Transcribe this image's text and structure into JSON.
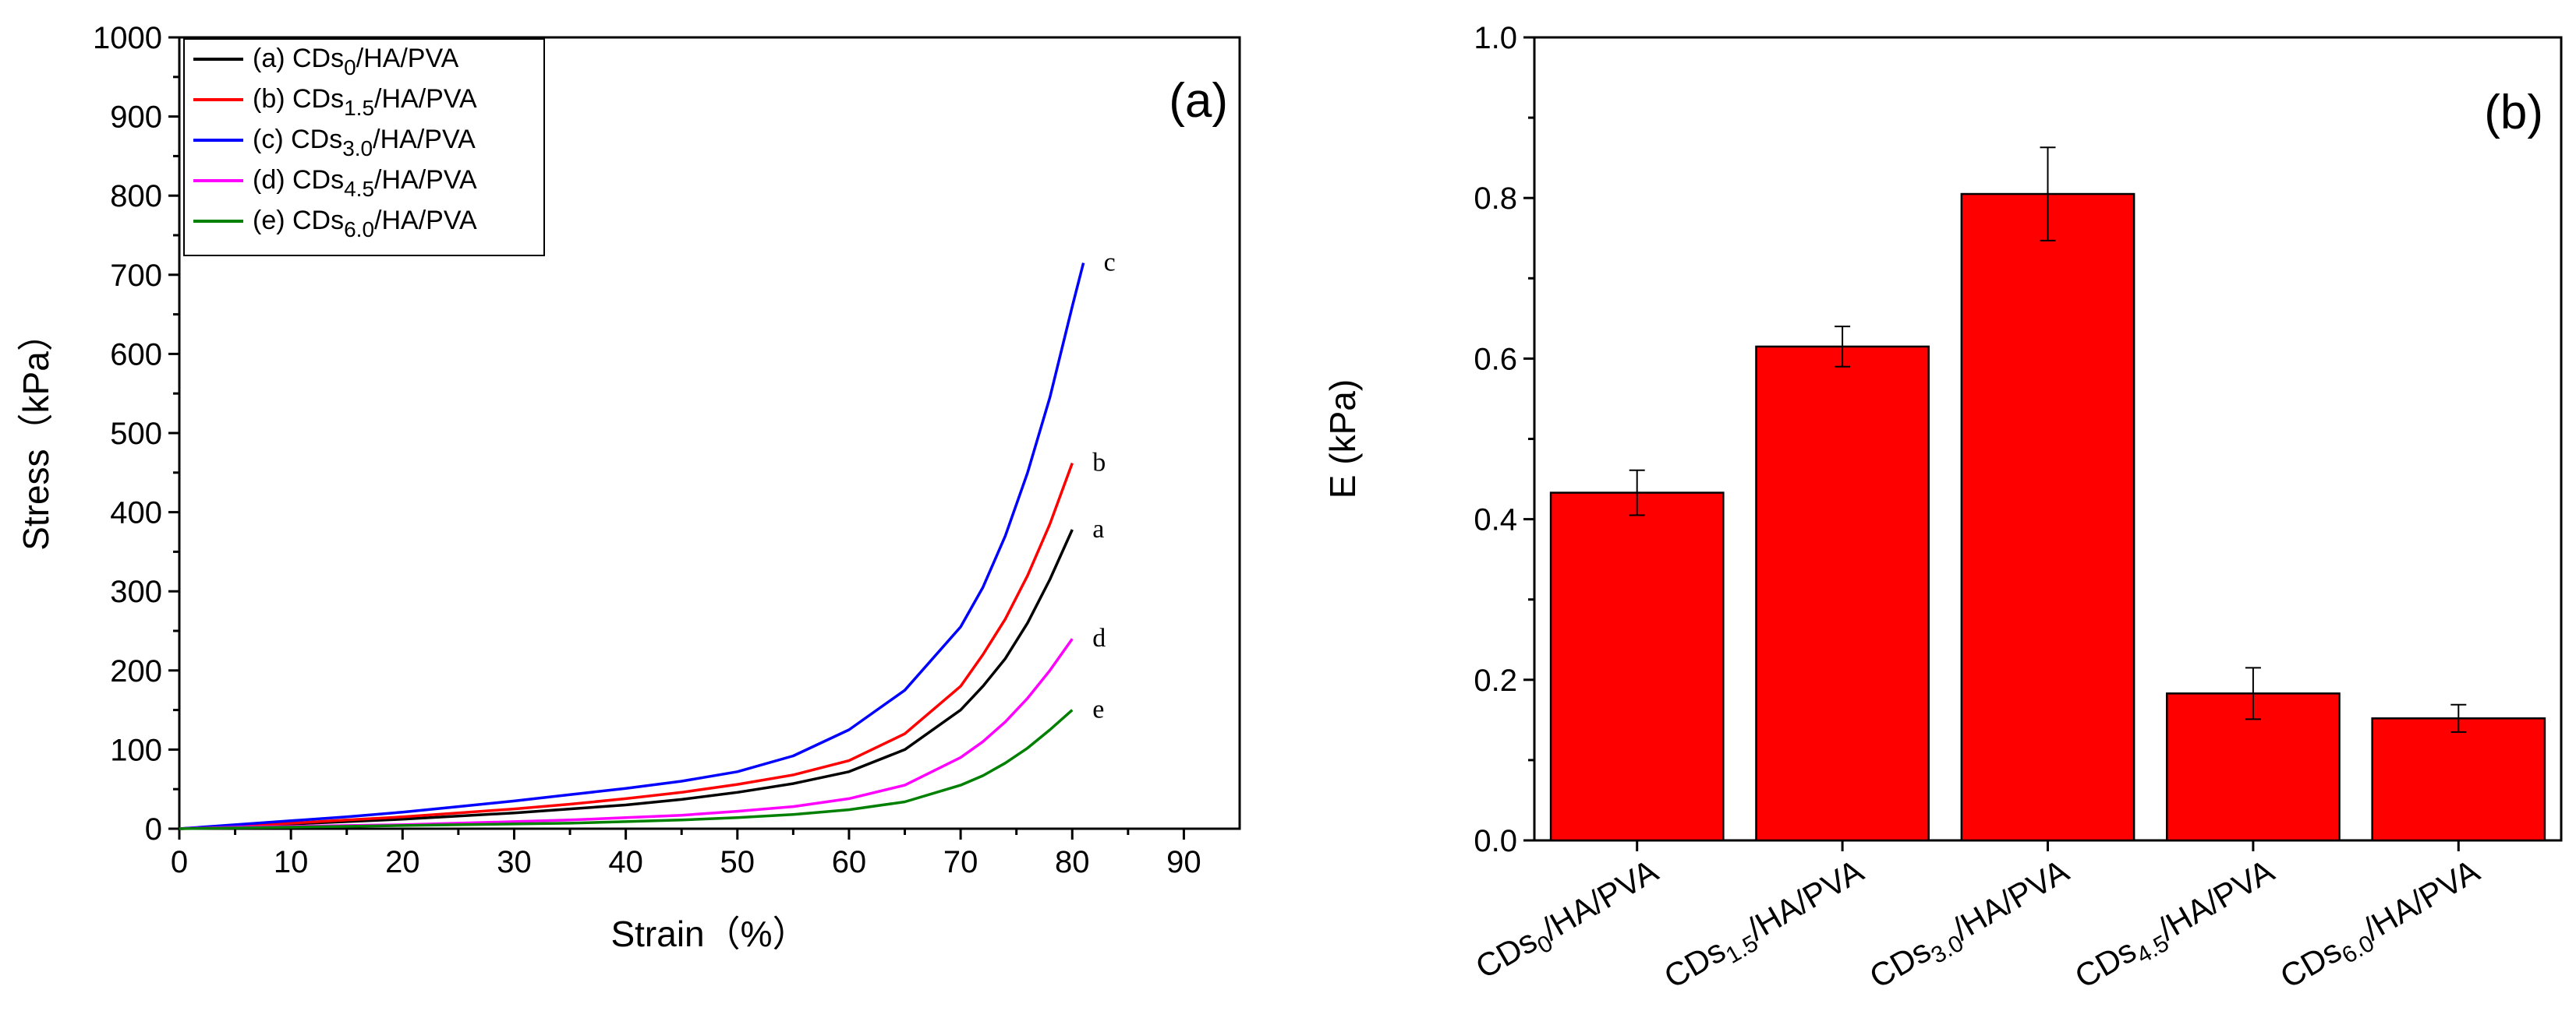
{
  "chart_data": [
    {
      "type": "line",
      "panel_label": "(a)",
      "xlabel": "Strain（%）",
      "ylabel": "Stress（kPa）",
      "xlim": [
        0,
        95
      ],
      "ylim": [
        0,
        1000
      ],
      "xticks": [
        0,
        10,
        20,
        30,
        40,
        50,
        60,
        70,
        80,
        90
      ],
      "yticks": [
        0,
        100,
        200,
        300,
        400,
        500,
        600,
        700,
        800,
        900,
        1000
      ],
      "grid": false,
      "legend_position": "top-left",
      "series": [
        {
          "name": "(a) CDs0/HA/PVA",
          "legend_prefix": "(a) CDs",
          "legend_sub": "0",
          "legend_suffix": "/HA/PVA",
          "end_label": "a",
          "color": "#000000",
          "x": [
            0,
            5,
            10,
            15,
            20,
            25,
            30,
            35,
            40,
            45,
            50,
            55,
            60,
            65,
            70,
            72,
            74,
            76,
            78,
            80
          ],
          "y": [
            0,
            3,
            6,
            9,
            12,
            16,
            20,
            25,
            30,
            37,
            46,
            57,
            72,
            100,
            150,
            180,
            215,
            260,
            315,
            378
          ]
        },
        {
          "name": "(b) CDs1.5/HA/PVA",
          "legend_prefix": "(b) CDs",
          "legend_sub": "1.5",
          "legend_suffix": "/HA/PVA",
          "end_label": "b",
          "color": "#ff0000",
          "x": [
            0,
            5,
            10,
            15,
            20,
            25,
            30,
            35,
            40,
            45,
            50,
            55,
            60,
            65,
            70,
            72,
            74,
            76,
            78,
            80
          ],
          "y": [
            0,
            4,
            7,
            11,
            15,
            20,
            25,
            31,
            38,
            46,
            56,
            68,
            86,
            120,
            180,
            220,
            265,
            320,
            385,
            462
          ]
        },
        {
          "name": "(c) CDs3.0/HA/PVA",
          "legend_prefix": "(c) CDs",
          "legend_sub": "3.0",
          "legend_suffix": "/HA/PVA",
          "end_label": "c",
          "color": "#0000ff",
          "x": [
            0,
            5,
            10,
            15,
            20,
            25,
            30,
            35,
            40,
            45,
            50,
            55,
            60,
            65,
            70,
            72,
            74,
            76,
            78,
            80,
            81
          ],
          "y": [
            0,
            5,
            10,
            15,
            21,
            28,
            35,
            43,
            51,
            60,
            72,
            92,
            125,
            175,
            255,
            305,
            370,
            450,
            545,
            660,
            715
          ]
        },
        {
          "name": "(d) CDs4.5/HA/PVA",
          "legend_prefix": "(d) CDs",
          "legend_sub": "4.5",
          "legend_suffix": "/HA/PVA",
          "end_label": "d",
          "color": "#ff00ff",
          "x": [
            0,
            5,
            10,
            15,
            20,
            25,
            30,
            35,
            40,
            45,
            50,
            55,
            60,
            65,
            70,
            72,
            74,
            76,
            78,
            80
          ],
          "y": [
            0,
            2,
            3,
            4,
            5,
            7,
            9,
            11,
            14,
            17,
            22,
            28,
            38,
            55,
            90,
            110,
            135,
            165,
            200,
            240
          ]
        },
        {
          "name": "(e) CDs6.0/HA/PVA",
          "legend_prefix": "(e) CDs",
          "legend_sub": "6.0",
          "legend_suffix": "/HA/PVA",
          "end_label": "e",
          "color": "#008000",
          "x": [
            0,
            5,
            10,
            15,
            20,
            25,
            30,
            35,
            40,
            45,
            50,
            55,
            60,
            65,
            70,
            72,
            74,
            76,
            78,
            80
          ],
          "y": [
            0,
            1,
            2,
            3,
            4,
            5,
            6,
            7,
            9,
            11,
            14,
            18,
            24,
            34,
            55,
            67,
            83,
            102,
            125,
            150
          ]
        }
      ]
    },
    {
      "type": "bar",
      "panel_label": "(b)",
      "xlabel": "",
      "ylabel": "E (kPa)",
      "ylim": [
        0,
        1.0
      ],
      "yticks": [
        0.0,
        0.2,
        0.4,
        0.6,
        0.8,
        1.0
      ],
      "ytick_labels": [
        "0.0",
        "0.2",
        "0.4",
        "0.6",
        "0.8",
        "1.0"
      ],
      "grid": false,
      "bar_color": "#ff0000",
      "categories": [
        {
          "prefix": "CDs",
          "sub": "0",
          "suffix": "/HA/PVA"
        },
        {
          "prefix": "CDs",
          "sub": "1.5",
          "suffix": "/HA/PVA"
        },
        {
          "prefix": "CDs",
          "sub": "3.0",
          "suffix": "/HA/PVA"
        },
        {
          "prefix": "CDs",
          "sub": "4.5",
          "suffix": "/HA/PVA"
        },
        {
          "prefix": "CDs",
          "sub": "6.0",
          "suffix": "/HA/PVA"
        }
      ],
      "values": [
        0.433,
        0.615,
        0.805,
        0.183,
        0.152
      ],
      "errors": [
        0.028,
        0.025,
        0.058,
        0.032,
        0.017
      ]
    }
  ]
}
